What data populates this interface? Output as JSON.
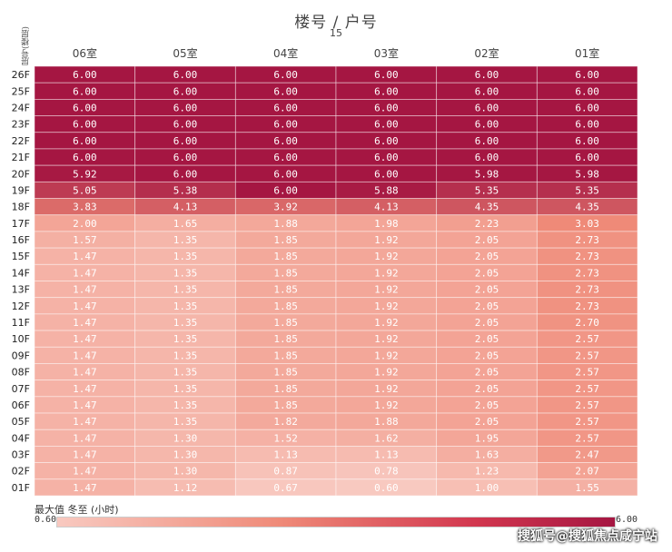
{
  "chart_data": {
    "type": "heatmap",
    "title": "楼号  /  户号",
    "building": "15",
    "row_axis_label": "层号(楼层)",
    "columns": [
      "06室",
      "05室",
      "04室",
      "03室",
      "02室",
      "01室"
    ],
    "rows": [
      "26F",
      "25F",
      "24F",
      "23F",
      "22F",
      "21F",
      "20F",
      "19F",
      "18F",
      "17F",
      "16F",
      "15F",
      "14F",
      "13F",
      "12F",
      "11F",
      "10F",
      "09F",
      "08F",
      "07F",
      "06F",
      "05F",
      "04F",
      "03F",
      "02F",
      "01F"
    ],
    "values": [
      [
        6.0,
        6.0,
        6.0,
        6.0,
        6.0,
        6.0
      ],
      [
        6.0,
        6.0,
        6.0,
        6.0,
        6.0,
        6.0
      ],
      [
        6.0,
        6.0,
        6.0,
        6.0,
        6.0,
        6.0
      ],
      [
        6.0,
        6.0,
        6.0,
        6.0,
        6.0,
        6.0
      ],
      [
        6.0,
        6.0,
        6.0,
        6.0,
        6.0,
        6.0
      ],
      [
        6.0,
        6.0,
        6.0,
        6.0,
        6.0,
        6.0
      ],
      [
        5.92,
        6.0,
        6.0,
        6.0,
        5.98,
        5.98
      ],
      [
        5.05,
        5.38,
        6.0,
        5.88,
        5.35,
        5.35
      ],
      [
        3.83,
        4.13,
        3.92,
        4.13,
        4.35,
        4.35
      ],
      [
        2.0,
        1.65,
        1.88,
        1.98,
        2.23,
        3.03
      ],
      [
        1.57,
        1.35,
        1.85,
        1.92,
        2.05,
        2.73
      ],
      [
        1.47,
        1.35,
        1.85,
        1.92,
        2.05,
        2.73
      ],
      [
        1.47,
        1.35,
        1.85,
        1.92,
        2.05,
        2.73
      ],
      [
        1.47,
        1.35,
        1.85,
        1.92,
        2.05,
        2.73
      ],
      [
        1.47,
        1.35,
        1.85,
        1.92,
        2.05,
        2.73
      ],
      [
        1.47,
        1.35,
        1.85,
        1.92,
        2.05,
        2.7
      ],
      [
        1.47,
        1.35,
        1.85,
        1.92,
        2.05,
        2.57
      ],
      [
        1.47,
        1.35,
        1.85,
        1.92,
        2.05,
        2.57
      ],
      [
        1.47,
        1.35,
        1.85,
        1.92,
        2.05,
        2.57
      ],
      [
        1.47,
        1.35,
        1.85,
        1.92,
        2.05,
        2.57
      ],
      [
        1.47,
        1.35,
        1.85,
        1.92,
        2.05,
        2.57
      ],
      [
        1.47,
        1.35,
        1.82,
        1.88,
        2.05,
        2.57
      ],
      [
        1.47,
        1.3,
        1.52,
        1.62,
        1.95,
        2.57
      ],
      [
        1.47,
        1.3,
        1.13,
        1.13,
        1.63,
        2.47
      ],
      [
        1.47,
        1.3,
        0.87,
        0.78,
        1.23,
        2.07
      ],
      [
        1.47,
        1.12,
        0.67,
        0.6,
        1.0,
        1.55
      ]
    ],
    "legend": {
      "title": "最大值 冬至 (小时)",
      "min": "0.60",
      "max": "6.00"
    },
    "colors": {
      "low": "#f8c9c0",
      "mid": "#ef8a78",
      "high": "#a51642"
    }
  },
  "watermark": "搜狐号@搜狐焦点咸宁站"
}
